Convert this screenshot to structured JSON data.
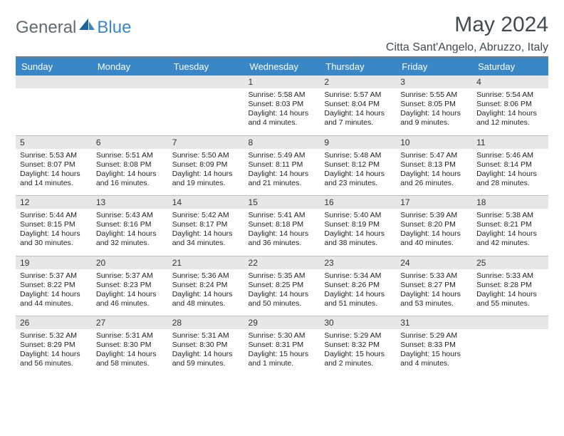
{
  "brand": {
    "word1": "General",
    "word2": "Blue"
  },
  "title": "May 2024",
  "location": "Citta Sant'Angelo, Abruzzo, Italy",
  "colors": {
    "header_bg": "#3a87c8",
    "header_text": "#ffffff",
    "daynum_bg": "#e7e7e7",
    "page_bg": "#ffffff",
    "brand_gray": "#5f6a72",
    "title_color": "#414b52",
    "cell_text": "#222222",
    "rule": "#7a7a7a"
  },
  "weekdays": [
    "Sunday",
    "Monday",
    "Tuesday",
    "Wednesday",
    "Thursday",
    "Friday",
    "Saturday"
  ],
  "weeks": [
    [
      {
        "n": "",
        "sunrise": "",
        "sunset": "",
        "daylight": ""
      },
      {
        "n": "",
        "sunrise": "",
        "sunset": "",
        "daylight": ""
      },
      {
        "n": "",
        "sunrise": "",
        "sunset": "",
        "daylight": ""
      },
      {
        "n": "1",
        "sunrise": "Sunrise: 5:58 AM",
        "sunset": "Sunset: 8:03 PM",
        "daylight": "Daylight: 14 hours and 4 minutes."
      },
      {
        "n": "2",
        "sunrise": "Sunrise: 5:57 AM",
        "sunset": "Sunset: 8:04 PM",
        "daylight": "Daylight: 14 hours and 7 minutes."
      },
      {
        "n": "3",
        "sunrise": "Sunrise: 5:55 AM",
        "sunset": "Sunset: 8:05 PM",
        "daylight": "Daylight: 14 hours and 9 minutes."
      },
      {
        "n": "4",
        "sunrise": "Sunrise: 5:54 AM",
        "sunset": "Sunset: 8:06 PM",
        "daylight": "Daylight: 14 hours and 12 minutes."
      }
    ],
    [
      {
        "n": "5",
        "sunrise": "Sunrise: 5:53 AM",
        "sunset": "Sunset: 8:07 PM",
        "daylight": "Daylight: 14 hours and 14 minutes."
      },
      {
        "n": "6",
        "sunrise": "Sunrise: 5:51 AM",
        "sunset": "Sunset: 8:08 PM",
        "daylight": "Daylight: 14 hours and 16 minutes."
      },
      {
        "n": "7",
        "sunrise": "Sunrise: 5:50 AM",
        "sunset": "Sunset: 8:09 PM",
        "daylight": "Daylight: 14 hours and 19 minutes."
      },
      {
        "n": "8",
        "sunrise": "Sunrise: 5:49 AM",
        "sunset": "Sunset: 8:11 PM",
        "daylight": "Daylight: 14 hours and 21 minutes."
      },
      {
        "n": "9",
        "sunrise": "Sunrise: 5:48 AM",
        "sunset": "Sunset: 8:12 PM",
        "daylight": "Daylight: 14 hours and 23 minutes."
      },
      {
        "n": "10",
        "sunrise": "Sunrise: 5:47 AM",
        "sunset": "Sunset: 8:13 PM",
        "daylight": "Daylight: 14 hours and 26 minutes."
      },
      {
        "n": "11",
        "sunrise": "Sunrise: 5:46 AM",
        "sunset": "Sunset: 8:14 PM",
        "daylight": "Daylight: 14 hours and 28 minutes."
      }
    ],
    [
      {
        "n": "12",
        "sunrise": "Sunrise: 5:44 AM",
        "sunset": "Sunset: 8:15 PM",
        "daylight": "Daylight: 14 hours and 30 minutes."
      },
      {
        "n": "13",
        "sunrise": "Sunrise: 5:43 AM",
        "sunset": "Sunset: 8:16 PM",
        "daylight": "Daylight: 14 hours and 32 minutes."
      },
      {
        "n": "14",
        "sunrise": "Sunrise: 5:42 AM",
        "sunset": "Sunset: 8:17 PM",
        "daylight": "Daylight: 14 hours and 34 minutes."
      },
      {
        "n": "15",
        "sunrise": "Sunrise: 5:41 AM",
        "sunset": "Sunset: 8:18 PM",
        "daylight": "Daylight: 14 hours and 36 minutes."
      },
      {
        "n": "16",
        "sunrise": "Sunrise: 5:40 AM",
        "sunset": "Sunset: 8:19 PM",
        "daylight": "Daylight: 14 hours and 38 minutes."
      },
      {
        "n": "17",
        "sunrise": "Sunrise: 5:39 AM",
        "sunset": "Sunset: 8:20 PM",
        "daylight": "Daylight: 14 hours and 40 minutes."
      },
      {
        "n": "18",
        "sunrise": "Sunrise: 5:38 AM",
        "sunset": "Sunset: 8:21 PM",
        "daylight": "Daylight: 14 hours and 42 minutes."
      }
    ],
    [
      {
        "n": "19",
        "sunrise": "Sunrise: 5:37 AM",
        "sunset": "Sunset: 8:22 PM",
        "daylight": "Daylight: 14 hours and 44 minutes."
      },
      {
        "n": "20",
        "sunrise": "Sunrise: 5:37 AM",
        "sunset": "Sunset: 8:23 PM",
        "daylight": "Daylight: 14 hours and 46 minutes."
      },
      {
        "n": "21",
        "sunrise": "Sunrise: 5:36 AM",
        "sunset": "Sunset: 8:24 PM",
        "daylight": "Daylight: 14 hours and 48 minutes."
      },
      {
        "n": "22",
        "sunrise": "Sunrise: 5:35 AM",
        "sunset": "Sunset: 8:25 PM",
        "daylight": "Daylight: 14 hours and 50 minutes."
      },
      {
        "n": "23",
        "sunrise": "Sunrise: 5:34 AM",
        "sunset": "Sunset: 8:26 PM",
        "daylight": "Daylight: 14 hours and 51 minutes."
      },
      {
        "n": "24",
        "sunrise": "Sunrise: 5:33 AM",
        "sunset": "Sunset: 8:27 PM",
        "daylight": "Daylight: 14 hours and 53 minutes."
      },
      {
        "n": "25",
        "sunrise": "Sunrise: 5:33 AM",
        "sunset": "Sunset: 8:28 PM",
        "daylight": "Daylight: 14 hours and 55 minutes."
      }
    ],
    [
      {
        "n": "26",
        "sunrise": "Sunrise: 5:32 AM",
        "sunset": "Sunset: 8:29 PM",
        "daylight": "Daylight: 14 hours and 56 minutes."
      },
      {
        "n": "27",
        "sunrise": "Sunrise: 5:31 AM",
        "sunset": "Sunset: 8:30 PM",
        "daylight": "Daylight: 14 hours and 58 minutes."
      },
      {
        "n": "28",
        "sunrise": "Sunrise: 5:31 AM",
        "sunset": "Sunset: 8:30 PM",
        "daylight": "Daylight: 14 hours and 59 minutes."
      },
      {
        "n": "29",
        "sunrise": "Sunrise: 5:30 AM",
        "sunset": "Sunset: 8:31 PM",
        "daylight": "Daylight: 15 hours and 1 minute."
      },
      {
        "n": "30",
        "sunrise": "Sunrise: 5:29 AM",
        "sunset": "Sunset: 8:32 PM",
        "daylight": "Daylight: 15 hours and 2 minutes."
      },
      {
        "n": "31",
        "sunrise": "Sunrise: 5:29 AM",
        "sunset": "Sunset: 8:33 PM",
        "daylight": "Daylight: 15 hours and 4 minutes."
      },
      {
        "n": "",
        "sunrise": "",
        "sunset": "",
        "daylight": ""
      }
    ]
  ]
}
